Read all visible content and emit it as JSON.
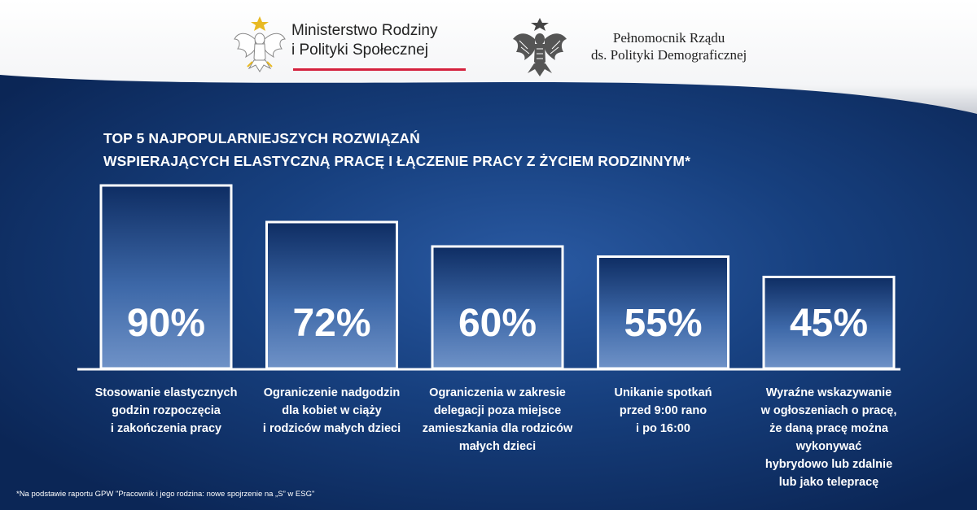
{
  "header": {
    "ministry_line1": "Ministerstwo Rodziny",
    "ministry_line2": "i Polityki Społecznej",
    "plenipotentiary_line1": "Pełnomocnik Rządu",
    "plenipotentiary_line2": "ds. Polityki Demograficznej",
    "ministry_icon": "white-eagle-emblem-icon",
    "plenipotentiary_icon": "eagle-coat-of-arms-icon",
    "colors": {
      "flag_red": "#d4213d",
      "background": "#17407f"
    }
  },
  "chart_data": {
    "type": "bar",
    "title_line1": "TOP 5 NAJPOPULARNIEJSZYCH  ROZWIĄZAŃ",
    "title_line2": "WSPIERAJĄCYCH  ELASTYCZNĄ PRACĘ I ŁĄCZENIE PRACY  Z ŻYCIEM RODZINNYM*",
    "categories": [
      [
        "Stosowanie elastycznych",
        "godzin rozpoczęcia",
        "i zakończenia pracy"
      ],
      [
        "Ograniczenie nadgodzin",
        "dla kobiet w ciąży",
        "i rodziców małych dzieci"
      ],
      [
        "Ograniczenia w zakresie",
        "delegacji poza miejsce",
        "zamieszkania dla rodziców",
        "małych dzieci"
      ],
      [
        "Unikanie spotkań",
        "przed 9:00 rano",
        "i po 16:00"
      ],
      [
        "Wyraźne wskazywanie",
        "w ogłoszeniach o pracę,",
        "że daną pracę można wykonywać",
        "hybrydowo lub zdalnie",
        "lub jako telepracę"
      ]
    ],
    "values": [
      90,
      72,
      60,
      55,
      45
    ],
    "value_labels": [
      "90%",
      "72%",
      "60%",
      "55%",
      "45%"
    ],
    "ylim": [
      0,
      90
    ],
    "grid": false
  },
  "footnote": "*Na podstawie raportu GPW \"Pracownik i jego rodzina: nowe spojrzenie na „S” w ESG\""
}
